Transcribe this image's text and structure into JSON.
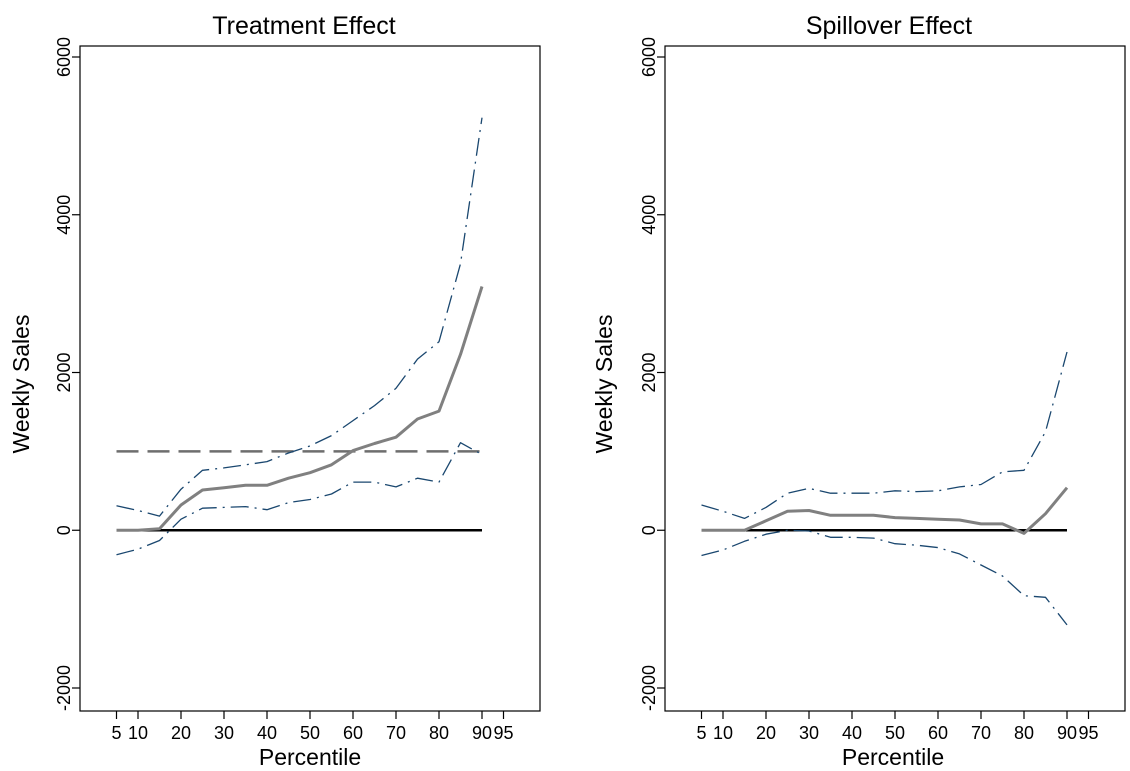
{
  "chart_data": [
    {
      "type": "line",
      "title": "Treatment Effect",
      "xlabel": "Percentile",
      "ylabel": "Weekly Sales",
      "xlim": [
        0,
        100
      ],
      "ylim": [
        -2000,
        6000
      ],
      "x_ticks": [
        "5",
        "10",
        "20",
        "30",
        "40",
        "50",
        "60",
        "70",
        "80",
        "90",
        "95"
      ],
      "x_tick_values": [
        5,
        10,
        20,
        30,
        40,
        50,
        60,
        70,
        80,
        90,
        95
      ],
      "y_ticks": [
        "-2000",
        "0",
        "2000",
        "4000",
        "6000"
      ],
      "y_tick_values": [
        -2000,
        0,
        2000,
        4000,
        6000
      ],
      "grid": false,
      "x": [
        5,
        10,
        15,
        20,
        25,
        30,
        35,
        40,
        45,
        50,
        55,
        60,
        65,
        70,
        75,
        80,
        85,
        90
      ],
      "series": [
        {
          "role": "estimate",
          "style": "solid",
          "color": "#808080",
          "values": [
            0,
            0,
            20,
            320,
            510,
            540,
            570,
            570,
            660,
            730,
            830,
            1010,
            1100,
            1180,
            1410,
            1510,
            2230,
            3090
          ]
        },
        {
          "role": "upper",
          "style": "dashdot",
          "color": "#1a476f",
          "values": [
            310,
            250,
            180,
            520,
            760,
            790,
            830,
            870,
            980,
            1070,
            1200,
            1390,
            1580,
            1800,
            2170,
            2390,
            3380,
            5230
          ]
        },
        {
          "role": "lower",
          "style": "dashdot",
          "color": "#1a476f",
          "values": [
            -310,
            -240,
            -130,
            140,
            280,
            290,
            300,
            260,
            350,
            390,
            460,
            610,
            610,
            550,
            660,
            610,
            1110,
            960
          ]
        }
      ],
      "reference_lines": [
        {
          "y": 0,
          "style": "solid",
          "color": "#000000",
          "x_from": 5,
          "x_to": 90
        },
        {
          "y": 1000,
          "style": "dashed",
          "color": "#6e6e6e",
          "x_from": 5,
          "x_to": 90
        }
      ]
    },
    {
      "type": "line",
      "title": "Spillover Effect",
      "xlabel": "Percentile",
      "ylabel": "Weekly Sales",
      "xlim": [
        0,
        100
      ],
      "ylim": [
        -2000,
        6000
      ],
      "x_ticks": [
        "5",
        "10",
        "20",
        "30",
        "40",
        "50",
        "60",
        "70",
        "80",
        "90",
        "95"
      ],
      "x_tick_values": [
        5,
        10,
        20,
        30,
        40,
        50,
        60,
        70,
        80,
        90,
        95
      ],
      "y_ticks": [
        "-2000",
        "0",
        "2000",
        "4000",
        "6000"
      ],
      "y_tick_values": [
        -2000,
        0,
        2000,
        4000,
        6000
      ],
      "grid": false,
      "x": [
        5,
        10,
        15,
        20,
        25,
        30,
        35,
        40,
        45,
        50,
        55,
        60,
        65,
        70,
        75,
        80,
        85,
        90
      ],
      "series": [
        {
          "role": "estimate",
          "style": "solid",
          "color": "#808080",
          "values": [
            0,
            0,
            0,
            120,
            240,
            250,
            190,
            190,
            190,
            160,
            150,
            140,
            130,
            80,
            80,
            -40,
            210,
            540
          ]
        },
        {
          "role": "upper",
          "style": "dashdot",
          "color": "#1a476f",
          "values": [
            320,
            240,
            150,
            290,
            470,
            530,
            470,
            470,
            470,
            500,
            490,
            500,
            550,
            580,
            740,
            760,
            1250,
            2260
          ]
        },
        {
          "role": "lower",
          "style": "dashdot",
          "color": "#1a476f",
          "values": [
            -320,
            -250,
            -140,
            -50,
            0,
            -10,
            -90,
            -90,
            -100,
            -170,
            -190,
            -220,
            -300,
            -440,
            -580,
            -830,
            -850,
            -1200
          ]
        }
      ],
      "reference_lines": [
        {
          "y": 0,
          "style": "solid",
          "color": "#000000",
          "x_from": 5,
          "x_to": 90
        }
      ]
    }
  ]
}
